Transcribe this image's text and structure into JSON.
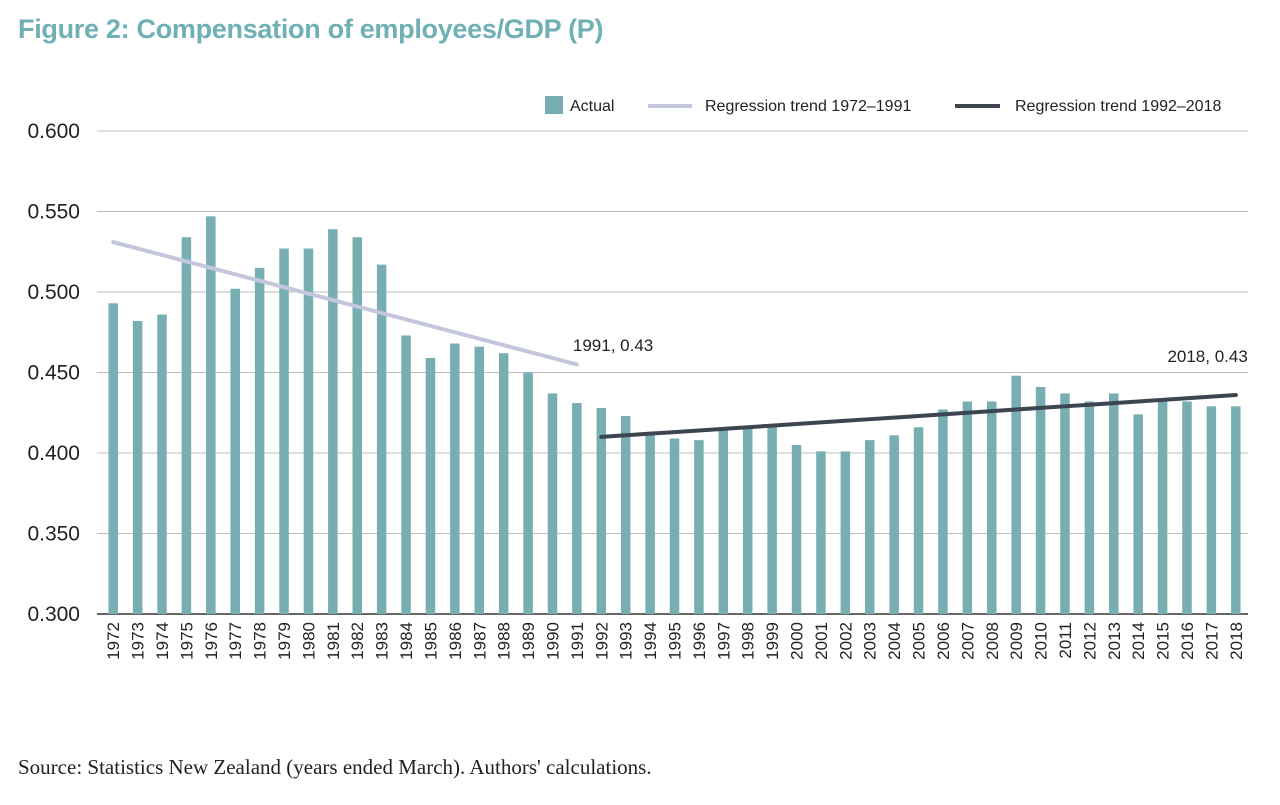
{
  "figure": {
    "title": "Figure 2: Compensation of employees/GDP (P)",
    "source": "Source: Statistics New Zealand (years ended March). Authors' calculations."
  },
  "colors": {
    "title": "#6fb0b4",
    "bar": "#77aeb1",
    "trend1": "#c4c6de",
    "trend2": "#3c4550",
    "grid": "#bdbdbd",
    "axis": "#333333"
  },
  "chart_data": {
    "type": "bar",
    "title": "Figure 2: Compensation of employees/GDP (P)",
    "xlabel": "",
    "ylabel": "",
    "ylim": [
      0.3,
      0.6
    ],
    "yticks": [
      "0.300",
      "0.350",
      "0.400",
      "0.450",
      "0.500",
      "0.550",
      "0.600"
    ],
    "grid": true,
    "legend_position": "top-right",
    "categories": [
      "1972",
      "1973",
      "1974",
      "1975",
      "1976",
      "1977",
      "1978",
      "1979",
      "1980",
      "1981",
      "1982",
      "1983",
      "1984",
      "1985",
      "1986",
      "1987",
      "1988",
      "1989",
      "1990",
      "1991",
      "1992",
      "1993",
      "1994",
      "1995",
      "1996",
      "1997",
      "1998",
      "1999",
      "2000",
      "2001",
      "2002",
      "2003",
      "2004",
      "2005",
      "2006",
      "2007",
      "2008",
      "2009",
      "2010",
      "2011",
      "2012",
      "2013",
      "2014",
      "2015",
      "2016",
      "2017",
      "2018"
    ],
    "series": [
      {
        "name": "Actual",
        "kind": "bar",
        "values": [
          0.493,
          0.482,
          0.486,
          0.534,
          0.547,
          0.502,
          0.515,
          0.527,
          0.527,
          0.539,
          0.534,
          0.517,
          0.473,
          0.459,
          0.468,
          0.466,
          0.462,
          0.45,
          0.437,
          0.431,
          0.428,
          0.423,
          0.411,
          0.409,
          0.408,
          0.415,
          0.415,
          0.416,
          0.405,
          0.401,
          0.401,
          0.408,
          0.411,
          0.416,
          0.427,
          0.432,
          0.432,
          0.448,
          0.441,
          0.437,
          0.432,
          0.437,
          0.424,
          0.432,
          0.432,
          0.429,
          0.429
        ]
      },
      {
        "name": "Regression trend 1972–1991",
        "kind": "line",
        "x": [
          "1972",
          "1991"
        ],
        "values": [
          0.531,
          0.455
        ]
      },
      {
        "name": "Regression trend 1992–2018",
        "kind": "line",
        "x": [
          "1992",
          "1993",
          "1994",
          "1995",
          "1996",
          "1997",
          "1998",
          "1999",
          "2000",
          "2001",
          "2002",
          "2003",
          "2004",
          "2005",
          "2006",
          "2007",
          "2008",
          "2009",
          "2010",
          "2011",
          "2012",
          "2013",
          "2014",
          "2015",
          "2016",
          "2017",
          "2018"
        ],
        "values": [
          0.41,
          0.411,
          0.412,
          0.413,
          0.414,
          0.415,
          0.416,
          0.417,
          0.418,
          0.419,
          0.42,
          0.421,
          0.422,
          0.423,
          0.424,
          0.425,
          0.426,
          0.427,
          0.428,
          0.429,
          0.43,
          0.431,
          0.432,
          0.433,
          0.434,
          0.435,
          0.436
        ]
      }
    ],
    "annotations": [
      {
        "text": "1991, 0.43",
        "x": "1991"
      },
      {
        "text": "2018, 0.43",
        "x": "2018"
      }
    ]
  }
}
